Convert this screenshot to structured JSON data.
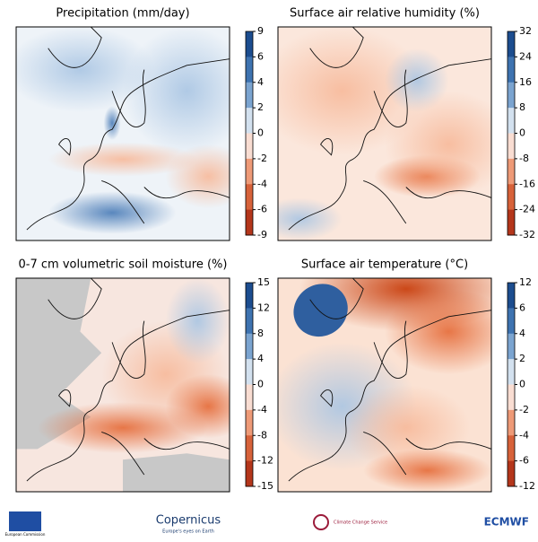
{
  "panels": [
    {
      "title": "Precipitation (mm/day)",
      "ticks": [
        9,
        6,
        4,
        2,
        0,
        -2,
        -4,
        -6,
        -9
      ]
    },
    {
      "title": "Surface air relative humidity (%)",
      "ticks": [
        32,
        24,
        16,
        8,
        0,
        -8,
        -16,
        -24,
        -32
      ]
    },
    {
      "title": "0-7 cm volumetric soil moisture (%)",
      "ticks": [
        15,
        12,
        8,
        4,
        0,
        -4,
        -8,
        -12,
        -15
      ]
    },
    {
      "title": "Surface air temperature (°C)",
      "ticks": [
        12,
        6,
        4,
        2,
        0,
        -2,
        -4,
        -6,
        -12
      ]
    }
  ],
  "colormap": [
    "#0b3a7e",
    "#4f86c0",
    "#ffffff",
    "#e8784a",
    "#a2200b"
  ],
  "footer": {
    "eu": "European Commission",
    "copernicus": "Copernicus",
    "copernicus_tagline": "Europe's eyes on Earth",
    "c3s": "Climate Change Service",
    "ecmwf": "ECMWF"
  }
}
